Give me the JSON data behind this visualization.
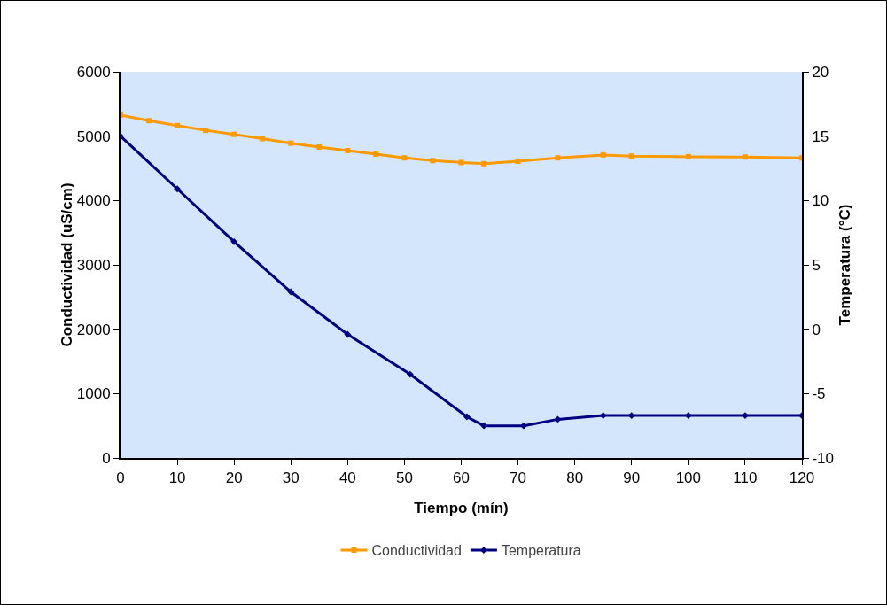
{
  "chart_data": {
    "type": "line",
    "xlabel": "Tiempo (mín)",
    "ylabel": "Conductividad (uS/cm)",
    "y2label": "Temperatura (°C)",
    "xlim": [
      0,
      120
    ],
    "xticks": [
      0,
      10,
      20,
      30,
      40,
      50,
      60,
      70,
      80,
      90,
      100,
      110,
      120
    ],
    "ylim": [
      0,
      6000
    ],
    "yticks": [
      0,
      1000,
      2000,
      3000,
      4000,
      5000,
      6000
    ],
    "y2lim": [
      -10,
      20
    ],
    "y2ticks": [
      -10,
      -5,
      0,
      5,
      10,
      15,
      20
    ],
    "grid": false,
    "legend": "bottom",
    "line_style": "solid",
    "series": [
      {
        "name": "Conductividad",
        "color": "#ff9900",
        "marker": "square",
        "x": [
          0,
          5,
          10,
          15,
          20,
          25,
          30,
          35,
          40,
          45,
          50,
          55,
          60,
          64,
          70,
          77,
          85,
          90,
          100,
          110,
          120
        ],
        "values": [
          5325,
          5240,
          5164,
          5090,
          5027,
          4960,
          4890,
          4830,
          4776,
          4720,
          4662,
          4620,
          4590,
          4571,
          4610,
          4662,
          4708,
          4690,
          4680,
          4675,
          4662
        ]
      },
      {
        "name": "Temperatura",
        "color": "#000080",
        "marker": "diamond",
        "axis": "y2",
        "x": [
          0,
          10,
          20,
          30,
          40,
          51,
          61,
          64,
          71,
          77,
          85,
          90,
          100,
          110,
          120
        ],
        "values": [
          15,
          10.9,
          6.8,
          2.9,
          -0.4,
          -3.5,
          -6.8,
          -7.5,
          -7.5,
          -7.0,
          -6.7,
          -6.7,
          -6.7,
          -6.7,
          -6.7
        ]
      }
    ]
  }
}
